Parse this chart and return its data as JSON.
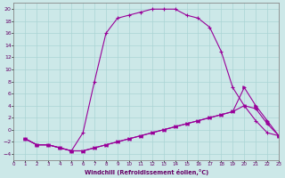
{
  "xlabel": "Windchill (Refroidissement éolien,°C)",
  "bg_color": "#cce8e8",
  "line_color": "#990099",
  "xlim": [
    0,
    23
  ],
  "ylim": [
    -5,
    21
  ],
  "yticks": [
    -4,
    -2,
    0,
    2,
    4,
    6,
    8,
    10,
    12,
    14,
    16,
    18,
    20
  ],
  "xticks": [
    0,
    1,
    2,
    3,
    4,
    5,
    6,
    7,
    8,
    9,
    10,
    11,
    12,
    13,
    14,
    15,
    16,
    17,
    18,
    19,
    20,
    21,
    22,
    23
  ],
  "curve1_x": [
    1,
    2,
    3,
    4,
    5,
    6,
    7,
    8,
    9,
    10,
    11,
    12,
    13,
    14,
    15,
    16,
    17,
    18,
    19,
    20,
    21,
    22,
    23
  ],
  "curve1_y": [
    -1.5,
    -2.5,
    -2.5,
    -3,
    -3.5,
    -0.5,
    8,
    16,
    18.5,
    19,
    19.5,
    20,
    20,
    20,
    19,
    18.5,
    17,
    13,
    7,
    4,
    1.5,
    -0.5,
    -1
  ],
  "curve2_x": [
    1,
    2,
    3,
    4,
    5,
    6,
    7,
    8,
    9,
    10,
    11,
    12,
    13,
    14,
    15,
    16,
    17,
    18,
    19,
    20,
    21,
    22,
    23
  ],
  "curve2_y": [
    -1.5,
    -2.5,
    -2.5,
    -3,
    -3.5,
    -3.5,
    -3,
    -2.5,
    -2,
    -1.5,
    -1,
    -0.5,
    0,
    0.5,
    1,
    1.5,
    2,
    2.5,
    3,
    4,
    3.5,
    1,
    -1
  ],
  "curve3_x": [
    1,
    2,
    3,
    4,
    5,
    6,
    7,
    8,
    9,
    10,
    11,
    12,
    13,
    14,
    15,
    16,
    17,
    18,
    19,
    20,
    21,
    22,
    23
  ],
  "curve3_y": [
    -1.5,
    -2.5,
    -2.5,
    -3,
    -3.5,
    -3.5,
    -3,
    -2.5,
    -2,
    -1.5,
    -1,
    -0.5,
    0,
    0.5,
    1,
    1.5,
    2,
    2.5,
    3,
    7,
    4,
    1.5,
    -1
  ]
}
